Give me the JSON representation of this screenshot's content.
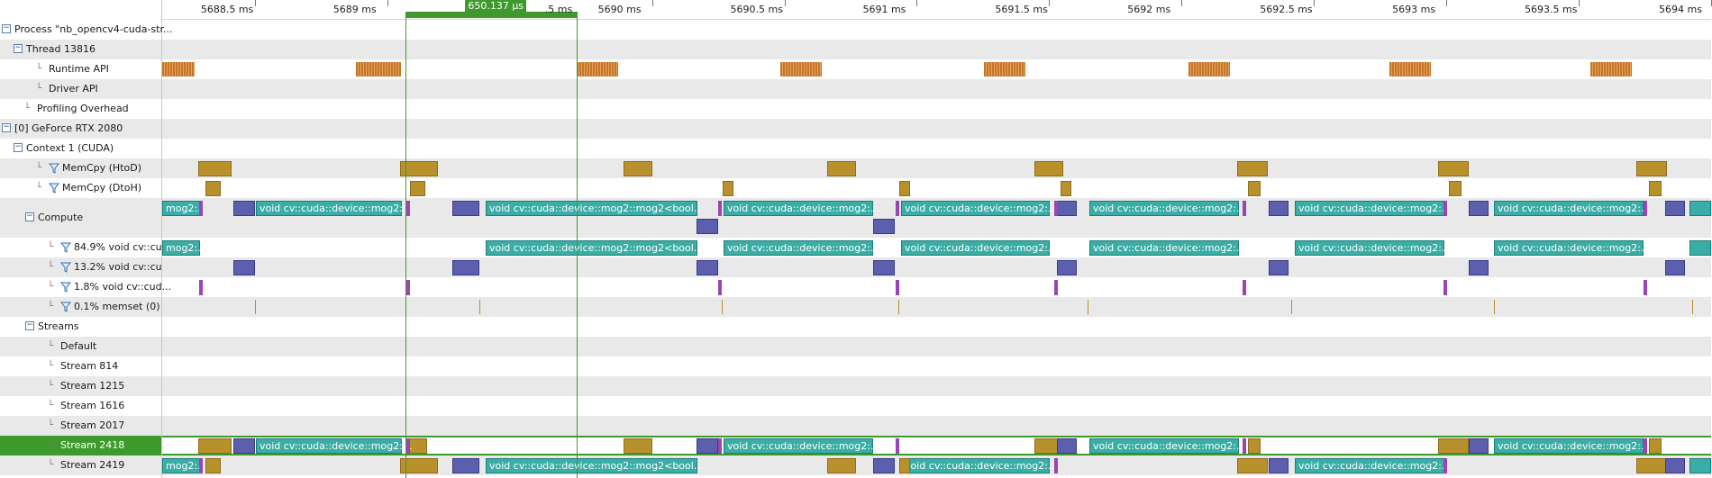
{
  "ruler": {
    "ticks": [
      {
        "label": "5688.5 ms",
        "t": 5688.5
      },
      {
        "label": "5689 ms",
        "t": 5689.0
      },
      {
        "label": "5690 ms",
        "t": 5690.0
      },
      {
        "label": "5690.5 ms",
        "t": 5690.5
      },
      {
        "label": "5691 ms",
        "t": 5691.0
      },
      {
        "label": "5691.5 ms",
        "t": 5691.5
      },
      {
        "label": "5692 ms",
        "t": 5692.0
      },
      {
        "label": "5692.5 ms",
        "t": 5692.5
      },
      {
        "label": "5693 ms",
        "t": 5693.0
      },
      {
        "label": "5693.5 ms",
        "t": 5693.5
      },
      {
        "label": "5694 ms",
        "t": 5694.0
      }
    ],
    "start_ms": 5688.15,
    "end_ms": 5694.0,
    "partial_label": ".5 ms"
  },
  "selection": {
    "label": "650.137 µs",
    "start_ms": 5689.07,
    "duration_ms": 0.650137
  },
  "rows": [
    {
      "key": "process",
      "label": "Process \"nb_opencv4-cuda-str...",
      "toggle": "−",
      "depth": 0
    },
    {
      "key": "thread",
      "label": "Thread 13816",
      "toggle": "−",
      "depth": 1
    },
    {
      "key": "runtime_api",
      "label": "Runtime API",
      "tree": "└",
      "depth": 2
    },
    {
      "key": "driver_api",
      "label": "Driver API",
      "tree": "└",
      "depth": 2
    },
    {
      "key": "profiling",
      "label": "Profiling Overhead",
      "tree": "└",
      "depth": 1
    },
    {
      "key": "gpu",
      "label": "[0] GeForce RTX 2080",
      "toggle": "−",
      "depth": 0
    },
    {
      "key": "context",
      "label": "Context 1 (CUDA)",
      "toggle": "−",
      "depth": 1
    },
    {
      "key": "htod",
      "label": "MemCpy (HtoD)",
      "tree": "└",
      "filter": true,
      "depth": 2
    },
    {
      "key": "dtoh",
      "label": "MemCpy (DtoH)",
      "tree": "└",
      "filter": true,
      "depth": 2
    },
    {
      "key": "compute",
      "label": "Compute",
      "toggle": "−",
      "depth": 2,
      "tall": true
    },
    {
      "key": "k1",
      "label": "84.9% void cv::cu...",
      "tree": "└",
      "filter": true,
      "depth": 3
    },
    {
      "key": "k2",
      "label": "13.2% void cv::cu...",
      "tree": "└",
      "filter": true,
      "depth": 3
    },
    {
      "key": "k3",
      "label": "1.8% void cv::cud...",
      "tree": "└",
      "filter": true,
      "depth": 3
    },
    {
      "key": "k4",
      "label": "0.1% memset (0)",
      "tree": "└",
      "filter": true,
      "depth": 3
    },
    {
      "key": "streams",
      "label": "Streams",
      "toggle": "−",
      "depth": 2
    },
    {
      "key": "s_default",
      "label": "Default",
      "tree": "└",
      "depth": 3
    },
    {
      "key": "s814",
      "label": "Stream 814",
      "tree": "└",
      "depth": 3
    },
    {
      "key": "s1215",
      "label": "Stream 1215",
      "tree": "└",
      "depth": 3
    },
    {
      "key": "s1616",
      "label": "Stream 1616",
      "tree": "└",
      "depth": 3
    },
    {
      "key": "s2017",
      "label": "Stream 2017",
      "tree": "└",
      "depth": 3
    },
    {
      "key": "s2418",
      "label": "Stream 2418",
      "tree": "└",
      "depth": 3,
      "selected": true
    },
    {
      "key": "s2419",
      "label": "Stream 2419",
      "tree": "└",
      "depth": 3
    }
  ],
  "kernel_labels": {
    "short": "void cv::cuda::device::mog2:...",
    "long": "void cv::cuda::device::mog2::mog2<bool...",
    "clip": "mog2:..."
  },
  "colors": {
    "selection": "#3f9a2d",
    "api": "#c4762a",
    "memcpy": "#b8902c",
    "kernel_teal": "#3aaea6",
    "kernel_blue": "#5b5fae",
    "kernel_purple": "#9b44b5"
  }
}
